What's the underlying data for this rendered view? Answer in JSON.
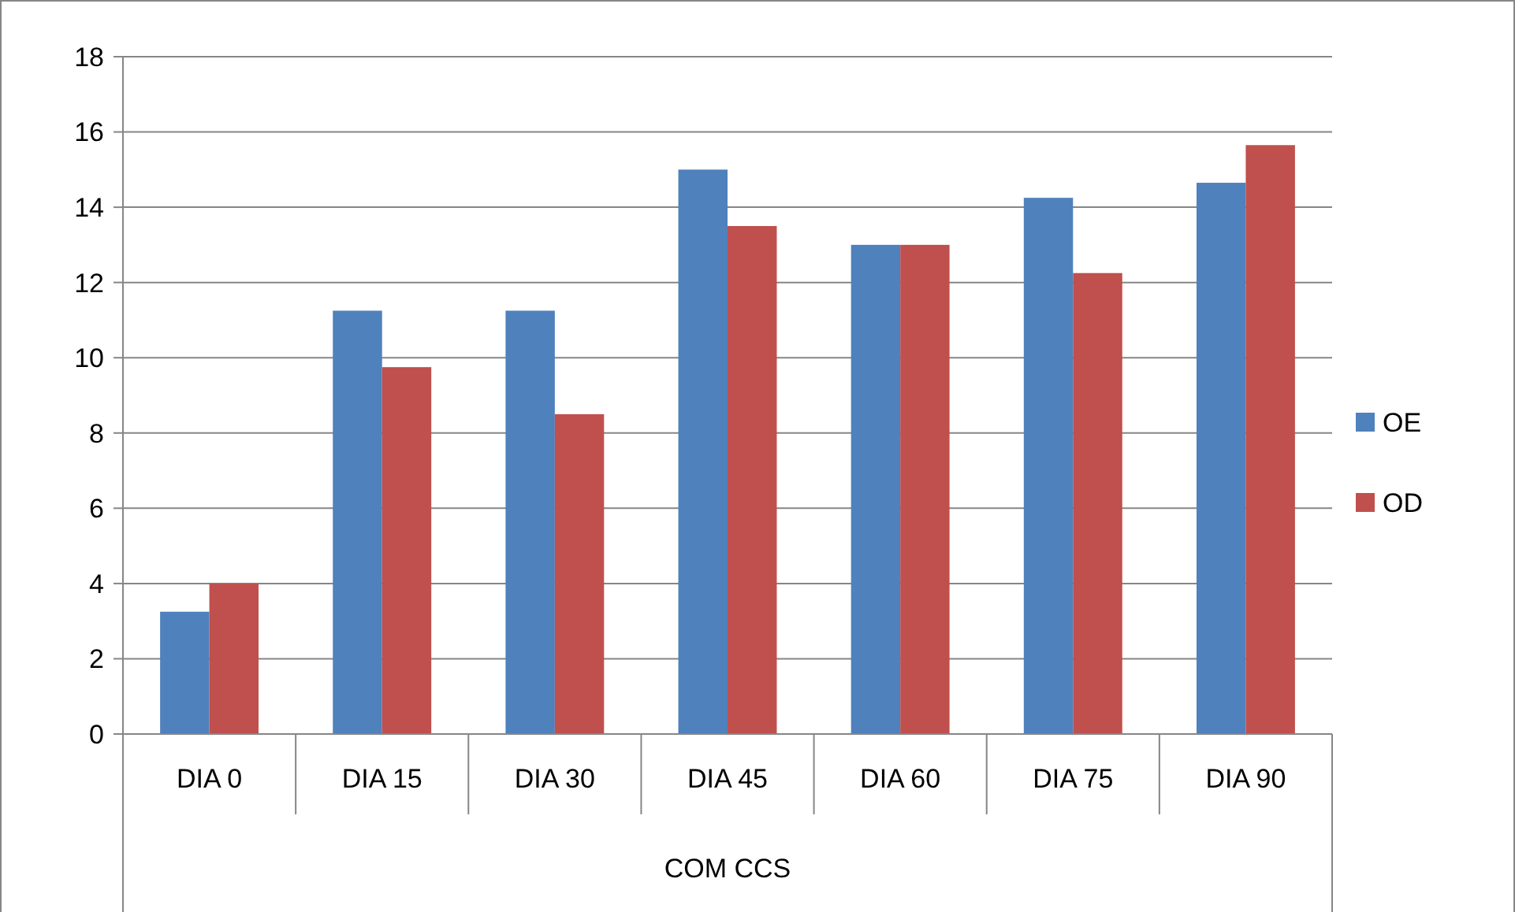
{
  "chart_data": {
    "type": "bar",
    "xlabel": "COM CCS",
    "categories": [
      "DIA 0",
      "DIA 15",
      "DIA 30",
      "DIA 45",
      "DIA 60",
      "DIA 75",
      "DIA 90"
    ],
    "series": [
      {
        "name": "OE",
        "color": "#4f81bd",
        "values": [
          3.25,
          11.25,
          11.25,
          15,
          13,
          14.25,
          14.65
        ]
      },
      {
        "name": "OD",
        "color": "#c0504d",
        "values": [
          4,
          9.75,
          8.5,
          13.5,
          13,
          12.25,
          15.65
        ]
      }
    ],
    "ylim": [
      0,
      18
    ],
    "yticks": [
      0,
      2,
      4,
      6,
      8,
      10,
      12,
      14,
      16,
      18
    ],
    "grid": "y",
    "legend": "right"
  }
}
